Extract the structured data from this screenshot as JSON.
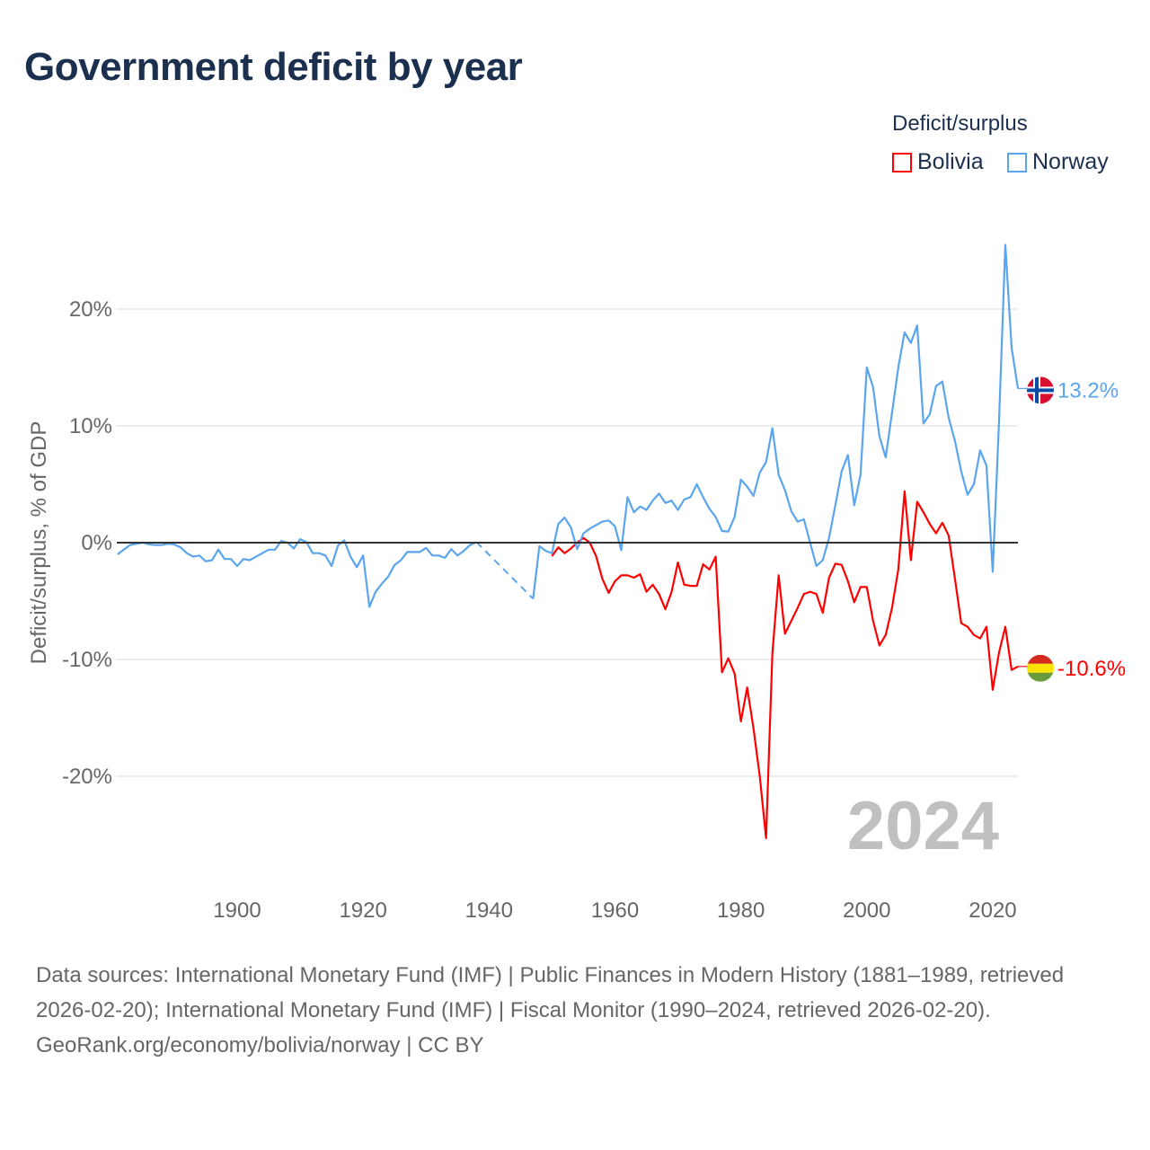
{
  "title": "Government deficit by year",
  "legend": {
    "title": "Deficit/surplus",
    "items": [
      {
        "name": "Bolivia",
        "color": "#ff0000"
      },
      {
        "name": "Norway",
        "color": "#5aa5ee"
      }
    ]
  },
  "footer": {
    "sources": "Data sources: International Monetary Fund (IMF) | Public Finances in Modern History (1881–1989, retrieved 2026-02-20); International Monetary Fund (IMF) | Fiscal Monitor (1990–2024, retrieved 2026-02-20).",
    "credit": "GeoRank.org/economy/bolivia/norway | CC BY"
  },
  "chart_data": {
    "type": "line",
    "title": "Government deficit by year",
    "ylabel": "Deficit/surplus, % of GDP",
    "xlabel": "",
    "xlim": [
      1881,
      2024
    ],
    "ylim": [
      -27,
      28
    ],
    "x_ticks": [
      1900,
      1920,
      1940,
      1960,
      1980,
      2000,
      2020
    ],
    "y_ticks": [
      {
        "v": 20,
        "label": "20%"
      },
      {
        "v": 10,
        "label": "10%"
      },
      {
        "v": 0,
        "label": "0%"
      },
      {
        "v": -10,
        "label": "-10%"
      },
      {
        "v": -20,
        "label": "-20%"
      }
    ],
    "grid": true,
    "legend_position": "top-right",
    "year_label": "2024",
    "series": [
      {
        "name": "Bolivia",
        "color": "#ff0000",
        "start_year": 1950,
        "end_label": "-10.6%",
        "flag": "bolivia",
        "values": [
          -1.15,
          -0.4,
          -0.9,
          -0.5,
          0,
          0.4,
          0,
          -1.15,
          -3.1,
          -4.3,
          -3.3,
          -2.8,
          -2.8,
          -3.0,
          -2.7,
          -4.2,
          -3.6,
          -4.4,
          -5.7,
          -4.2,
          -1.7,
          -3.6,
          -3.7,
          -3.7,
          -1.85,
          -2.3,
          -1.2,
          -11.1,
          -9.9,
          -11.2,
          -15.3,
          -12.4,
          -15.9,
          -20.0,
          -25.3,
          -9.5,
          -2.8,
          -7.8,
          -6.7,
          -5.6,
          -4.4,
          -4.2,
          -4.4,
          -6.0,
          -3.0,
          -1.8,
          -1.9,
          -3.3,
          -5.1,
          -3.8,
          -3.8,
          -6.7,
          -8.8,
          -7.9,
          -5.6,
          -2.3,
          4.4,
          -1.5,
          3.5,
          2.6,
          1.6,
          0.8,
          1.7,
          0.6,
          -3.1,
          -6.9,
          -7.2,
          -7.9,
          -8.2,
          -7.2,
          -12.6,
          -9.4,
          -7.2,
          -10.9,
          -10.6
        ]
      },
      {
        "name": "Norway",
        "color": "#5aa5ee",
        "start_year": 1881,
        "end_label": "13.2%",
        "flag": "norway",
        "values": [
          -1.0,
          -0.6,
          -0.2,
          -0.1,
          0,
          -0.15,
          -0.2,
          -0.2,
          -0.1,
          -0.15,
          -0.4,
          -0.9,
          -1.2,
          -1.1,
          -1.6,
          -1.5,
          -0.6,
          -1.4,
          -1.4,
          -2.0,
          -1.4,
          -1.5,
          -1.2,
          -0.9,
          -0.6,
          -0.6,
          0.15,
          0,
          -0.5,
          0.3,
          0.05,
          -0.9,
          -0.9,
          -1.1,
          -2.0,
          -0.25,
          0.2,
          -1.2,
          -2.1,
          -1.1,
          -5.5,
          -4.2,
          -3.5,
          -2.9,
          -1.9,
          -1.5,
          -0.8,
          -0.8,
          -0.8,
          -0.45,
          -1.1,
          -1.1,
          -1.3,
          -0.55,
          -1.1,
          -0.7,
          -0.2,
          0.05,
          null,
          null,
          null,
          null,
          null,
          null,
          null,
          null,
          -4.8,
          -0.3,
          -0.7,
          -0.9,
          1.6,
          2.15,
          1.3,
          -0.55,
          0.8,
          1.2,
          1.5,
          1.8,
          1.9,
          1.4,
          -0.65,
          3.9,
          2.6,
          3.1,
          2.8,
          3.6,
          4.2,
          3.4,
          3.6,
          2.8,
          3.7,
          3.9,
          5.0,
          3.9,
          2.9,
          2.2,
          1.0,
          0.95,
          2.2,
          5.4,
          4.8,
          4.0,
          6.0,
          6.9,
          9.8,
          5.8,
          4.5,
          2.7,
          1.8,
          2.0,
          0,
          -2.0,
          -1.5,
          0.4,
          3.2,
          6.1,
          7.5,
          3.2,
          5.8,
          15.0,
          13.3,
          9.1,
          7.3,
          11.1,
          15.0,
          18.0,
          17.1,
          18.6,
          10.2,
          11.0,
          13.4,
          13.8,
          10.7,
          8.7,
          6.1,
          4.1,
          5.0,
          7.9,
          6.6,
          -2.5,
          10.4,
          25.5,
          16.7,
          13.2
        ]
      }
    ]
  }
}
